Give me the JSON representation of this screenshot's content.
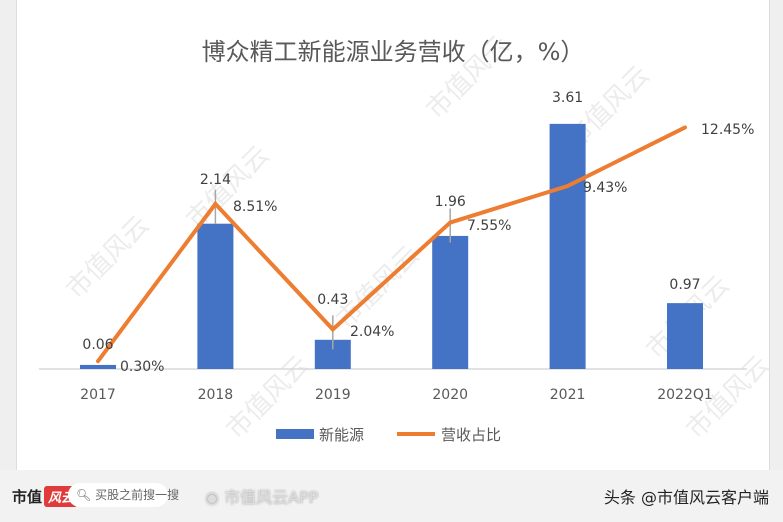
{
  "chart_data": {
    "type": "bar+line",
    "title": "博众精工新能源业务营收（亿，%）",
    "categories": [
      "2017",
      "2018",
      "2019",
      "2020",
      "2021",
      "2022Q1"
    ],
    "series": [
      {
        "name": "新能源",
        "type": "bar",
        "values": [
          0.06,
          2.14,
          0.43,
          1.96,
          3.61,
          0.97
        ],
        "labels": [
          "0.06",
          "2.14",
          "0.43",
          "1.96",
          "3.61",
          "0.97"
        ],
        "color": "#4472C4"
      },
      {
        "name": "营收占比",
        "type": "line",
        "values": [
          0.3,
          8.51,
          2.04,
          7.55,
          9.43,
          12.45
        ],
        "labels": [
          "0.30%",
          "8.51%",
          "2.04%",
          "7.55%",
          "9.43%",
          "12.45%"
        ],
        "color": "#ED7D31"
      }
    ],
    "legend_position": "bottom",
    "grid": false
  },
  "watermark": "市值风云",
  "footer": {
    "brand": "市值",
    "brand_logo": "风云",
    "search_placeholder": "买股之前搜一搜",
    "weibo": "市值风云APP",
    "toutiao": "头条 @市值风云客户端"
  }
}
